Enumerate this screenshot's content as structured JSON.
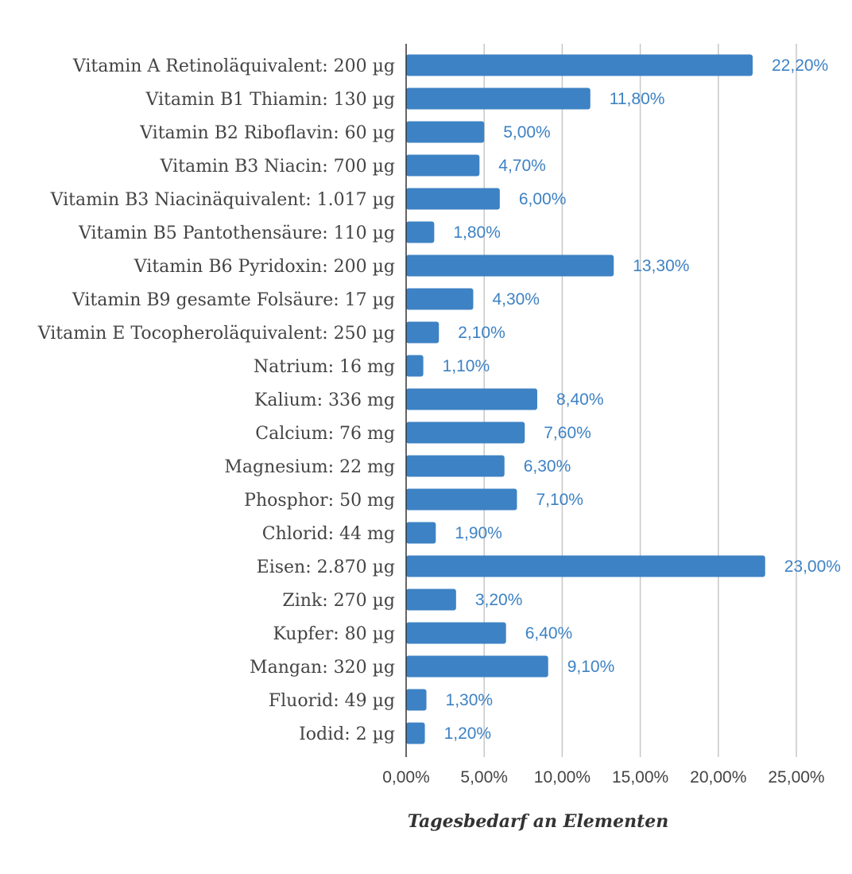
{
  "chart_data": {
    "type": "bar",
    "orientation": "horizontal",
    "categories": [
      "Vitamin A Retinoläquivalent: 200 µg",
      "Vitamin B1 Thiamin: 130 µg",
      "Vitamin B2 Riboflavin: 60 µg",
      "Vitamin B3 Niacin: 700 µg",
      "Vitamin B3 Niacinäquivalent: 1.017 µg",
      "Vitamin B5 Pantothensäure: 110 µg",
      "Vitamin B6 Pyridoxin: 200 µg",
      "Vitamin B9 gesamte Folsäure: 17 µg",
      "Vitamin E Tocopheroläquivalent: 250 µg",
      "Natrium: 16 mg",
      "Kalium: 336 mg",
      "Calcium: 76 mg",
      "Magnesium: 22 mg",
      "Phosphor: 50 mg",
      "Chlorid: 44 mg",
      "Eisen: 2.870 µg",
      "Zink: 270 µg",
      "Kupfer: 80 µg",
      "Mangan: 320 µg",
      "Fluorid: 49 µg",
      "Iodid: 2 µg"
    ],
    "values": [
      22.2,
      11.8,
      5.0,
      4.7,
      6.0,
      1.8,
      13.3,
      4.3,
      2.1,
      1.1,
      8.4,
      7.6,
      6.3,
      7.1,
      1.9,
      23.0,
      3.2,
      6.4,
      9.1,
      1.3,
      1.2
    ],
    "value_labels": [
      "22,20%",
      "11,80%",
      "5,00%",
      "4,70%",
      "6,00%",
      "1,80%",
      "13,30%",
      "4,30%",
      "2,10%",
      "1,10%",
      "8,40%",
      "7,60%",
      "6,30%",
      "7,10%",
      "1,90%",
      "23,00%",
      "3,20%",
      "6,40%",
      "9,10%",
      "1,30%",
      "1,20%"
    ],
    "title": "",
    "xlabel": "Tagesbedarf an Elementen",
    "ylabel": "",
    "xlim": [
      0,
      25
    ],
    "xticks": [
      0,
      5,
      10,
      15,
      20,
      25
    ],
    "xtick_labels": [
      "0,00%",
      "5,00%",
      "10,00%",
      "15,00%",
      "20,00%",
      "25,00%"
    ],
    "grid": "vertical",
    "legend": "none",
    "colors": {
      "bar": "#3d82c4",
      "value_label": "#3d82c4",
      "grid": "#c7c7c7",
      "axis": "#333333"
    }
  }
}
